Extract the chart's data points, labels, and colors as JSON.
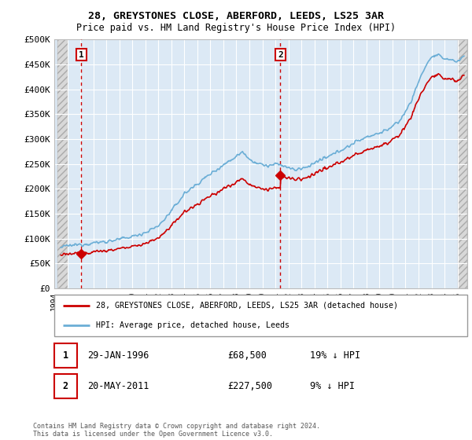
{
  "title_line1": "28, GREYSTONES CLOSE, ABERFORD, LEEDS, LS25 3AR",
  "title_line2": "Price paid vs. HM Land Registry's House Price Index (HPI)",
  "ylim": [
    0,
    500000
  ],
  "yticks": [
    0,
    50000,
    100000,
    150000,
    200000,
    250000,
    300000,
    350000,
    400000,
    450000,
    500000
  ],
  "ytick_labels": [
    "£0",
    "£50K",
    "£100K",
    "£150K",
    "£200K",
    "£250K",
    "£300K",
    "£350K",
    "£400K",
    "£450K",
    "£500K"
  ],
  "sale1_date_num": 1996.08,
  "sale1_price": 68500,
  "sale2_date_num": 2011.38,
  "sale2_price": 227500,
  "hpi_color": "#6baed6",
  "price_color": "#cc0000",
  "marker_color": "#cc0000",
  "vline_color": "#cc0000",
  "legend_text1": "28, GREYSTONES CLOSE, ABERFORD, LEEDS, LS25 3AR (detached house)",
  "legend_text2": "HPI: Average price, detached house, Leeds",
  "footer_text": "Contains HM Land Registry data © Crown copyright and database right 2024.\nThis data is licensed under the Open Government Licence v3.0.",
  "bg_color": "#dce9f5",
  "xlim_left": 1994.25,
  "xlim_right": 2025.75,
  "hatch_left_end": 1995.0,
  "hatch_right_start": 2025.0
}
